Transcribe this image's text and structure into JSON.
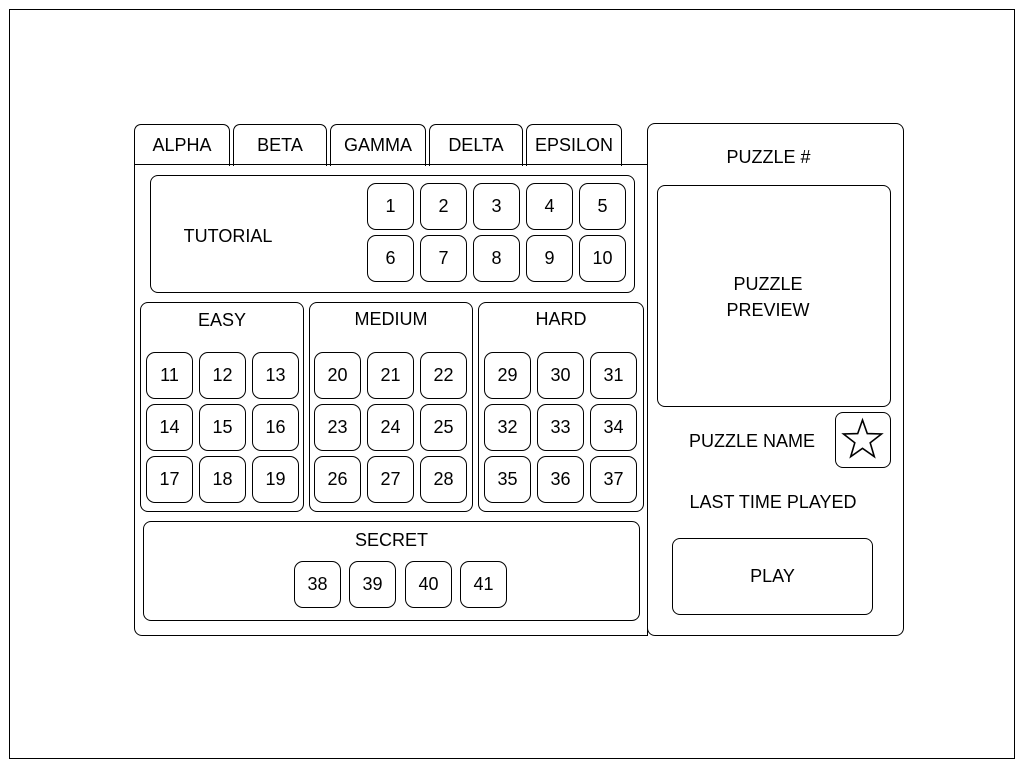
{
  "tabs": [
    "ALPHA",
    "BETA",
    "GAMMA",
    "DELTA",
    "EPSILON"
  ],
  "tutorial": {
    "label": "TUTORIAL",
    "levels": [
      "1",
      "2",
      "3",
      "4",
      "5",
      "6",
      "7",
      "8",
      "9",
      "10"
    ]
  },
  "easy": {
    "label": "EASY",
    "levels": [
      "11",
      "12",
      "13",
      "14",
      "15",
      "16",
      "17",
      "18",
      "19"
    ]
  },
  "medium": {
    "label": "MEDIUM",
    "levels": [
      "20",
      "21",
      "22",
      "23",
      "24",
      "25",
      "26",
      "27",
      "28"
    ]
  },
  "hard": {
    "label": "HARD",
    "levels": [
      "29",
      "30",
      "31",
      "32",
      "33",
      "34",
      "35",
      "36",
      "37"
    ]
  },
  "secret": {
    "label": "SECRET",
    "levels": [
      "38",
      "39",
      "40",
      "41"
    ]
  },
  "side": {
    "puzzle_number": "PUZZLE #",
    "preview_line1": "PUZZLE",
    "preview_line2": "PREVIEW",
    "puzzle_name": "PUZZLE NAME",
    "last_played": "LAST TIME PLAYED",
    "play": "PLAY",
    "favorite_icon": "star-icon"
  }
}
